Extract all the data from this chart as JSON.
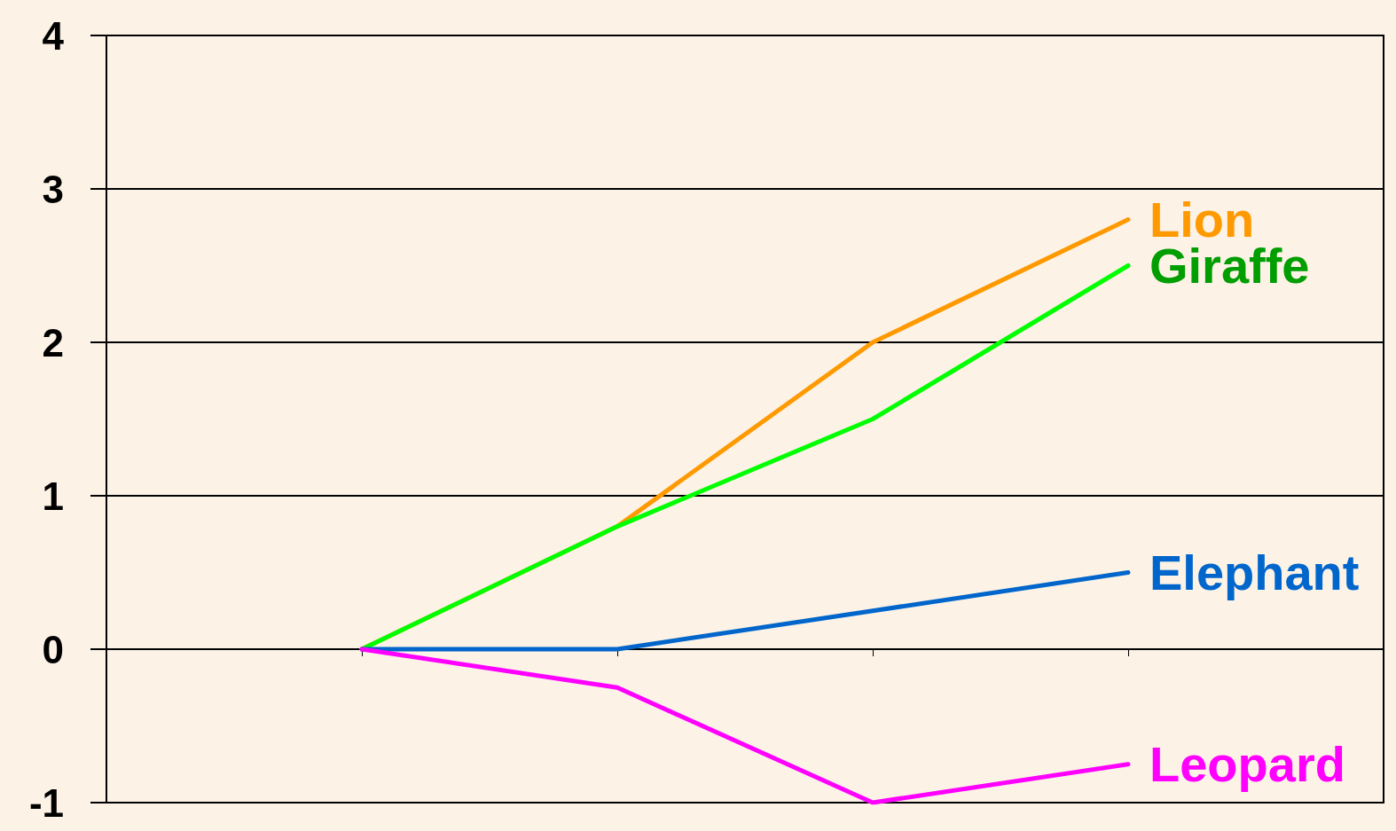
{
  "chart_data": {
    "type": "line",
    "categories": [
      null,
      null,
      null,
      null,
      null,
      null
    ],
    "series": [
      {
        "name": "Lion",
        "color": "#ff9900",
        "values": [
          null,
          0,
          0.8,
          2,
          2.8,
          null
        ]
      },
      {
        "name": "Giraffe",
        "color": "#00ff00",
        "values": [
          null,
          0,
          0.8,
          1.5,
          2.5,
          null
        ]
      },
      {
        "name": "Elephant",
        "color": "#0066cc",
        "values": [
          null,
          0,
          0,
          0.25,
          0.5,
          null
        ]
      },
      {
        "name": "Leopard",
        "color": "#ff00ff",
        "values": [
          null,
          0,
          -0.25,
          -1,
          -0.75,
          null
        ]
      }
    ],
    "ylim": [
      -1,
      4
    ],
    "yticks": [
      -1,
      0,
      1,
      2,
      3,
      4
    ],
    "grid": "y",
    "tick_labels": "y",
    "marker": "none",
    "line_style": "solid"
  }
}
